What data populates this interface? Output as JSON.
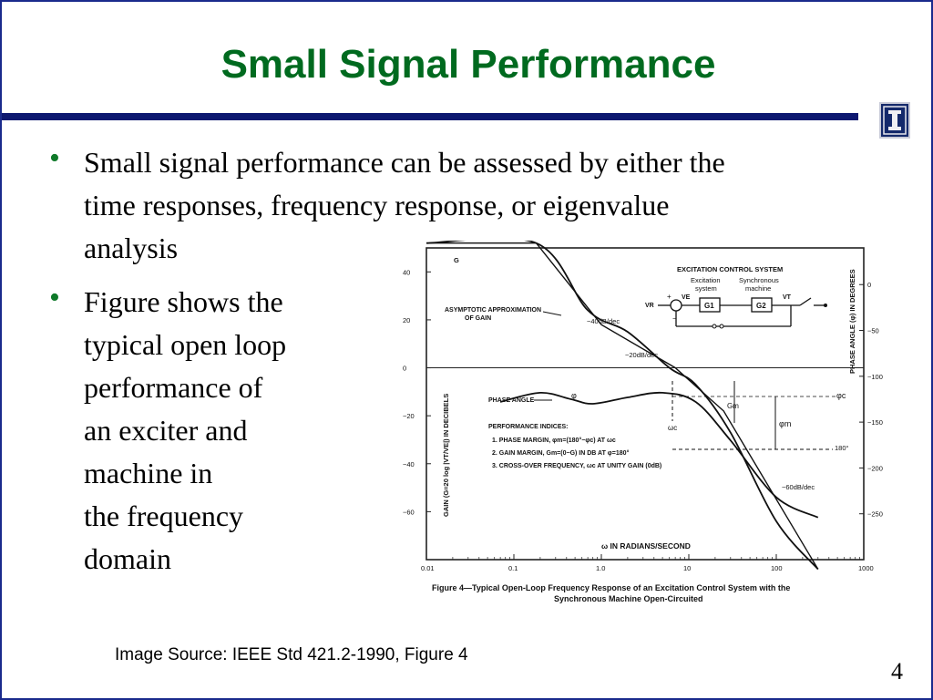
{
  "slide": {
    "title": "Small Signal Performance",
    "title_color": "#006a1f",
    "rule_color": "#0d1870",
    "logo_icon": "illinois-i-logo",
    "bullet_color": "#0f7a2a",
    "bullets": [
      {
        "marker": "•",
        "lines": [
          "Small signal performance can be assessed by either the",
          "time responses, frequency response, or eigenvalue",
          "analysis"
        ]
      },
      {
        "marker": "•",
        "lines": [
          "Figure shows the",
          "typical open loop",
          "performance of",
          "an exciter and",
          "machine in",
          "the frequency",
          "domain"
        ]
      }
    ],
    "source": "Image Source: IEEE Std 421.2-1990, Figure 4",
    "page_number": "4"
  },
  "chart_data": {
    "type": "line",
    "caption_line1": "Figure 4—Typical Open-Loop Frequency Response of an Excitation Control System with the",
    "caption_line2": "Synchronous Machine Open-Circuited",
    "xlabel": "ω IN RADIANS/SECOND",
    "ylabel_left": "GAIN (G=20 log |VT/VE|) IN DECIBELS",
    "ylabel_right": "PHASE ANGLE (φ) IN DEGREES",
    "x_scale": "log",
    "xlim": [
      0.01,
      1000
    ],
    "x_ticks": [
      "0.01",
      "0.1",
      "1.0",
      "10",
      "100",
      "1000"
    ],
    "y_left_lim": [
      -80,
      50
    ],
    "y_left_ticks": [
      "40",
      "20",
      "0",
      "−20",
      "−40",
      "−60"
    ],
    "y_right_lim": [
      -300,
      40
    ],
    "y_right_ticks": [
      "0",
      "−50",
      "−100",
      "−150",
      "−200",
      "−250"
    ],
    "series": [
      {
        "name": "G",
        "axis": "left",
        "x": [
          0.01,
          0.18,
          0.7,
          2,
          6,
          12,
          30,
          100,
          300
        ],
        "y": [
          52,
          52,
          24,
          15,
          0,
          -7,
          -27,
          -64,
          -84
        ]
      },
      {
        "name": "φ",
        "axis": "right",
        "x": [
          0.07,
          0.2,
          0.45,
          0.8,
          2,
          5,
          12,
          30,
          100,
          300
        ],
        "y": [
          -128,
          -118,
          -125,
          -130,
          -123,
          -118,
          -128,
          -170,
          -232,
          -254
        ]
      }
    ],
    "asymptote": {
      "x": [
        0.01,
        0.18,
        1.0,
        7,
        25,
        300
      ],
      "y": [
        52,
        52,
        18,
        0,
        -18,
        -84
      ]
    },
    "block_diagram": {
      "title": "EXCITATION CONTROL SYSTEM",
      "label_exciter": "Excitation",
      "label_exciter2": "system",
      "label_machine": "Synchronous",
      "label_machine2": "machine",
      "input": "VR",
      "output": "VT",
      "error": "VE",
      "block1": "G1",
      "block2": "G2",
      "plus": "+",
      "minus": "−"
    },
    "annotations": {
      "top_g": "G",
      "asymptotic1": "ASYMPTOTIC APPROXIMATION",
      "asymptotic2": "OF GAIN",
      "slope40": "−40dB/dec",
      "slope20": "−20dB/dec",
      "slope60": "−60dB/dec",
      "phase_angle": "PHASE ANGLE",
      "phi_label": "φ",
      "phi_c": "φc",
      "phi_m": "φm",
      "g_m": "Gm",
      "omega_c": "ωc",
      "deg180": "180°",
      "indices_title": "PERFORMANCE INDICES:",
      "index1": "1. PHASE MARGIN, φm=(180°−φc) AT ωc",
      "index2": "2. GAIN MARGIN, Gm=(0−G) IN DB AT φ=180°",
      "index3": "3. CROSS-OVER FREQUENCY, ωc AT UNITY GAIN (0dB)"
    }
  }
}
